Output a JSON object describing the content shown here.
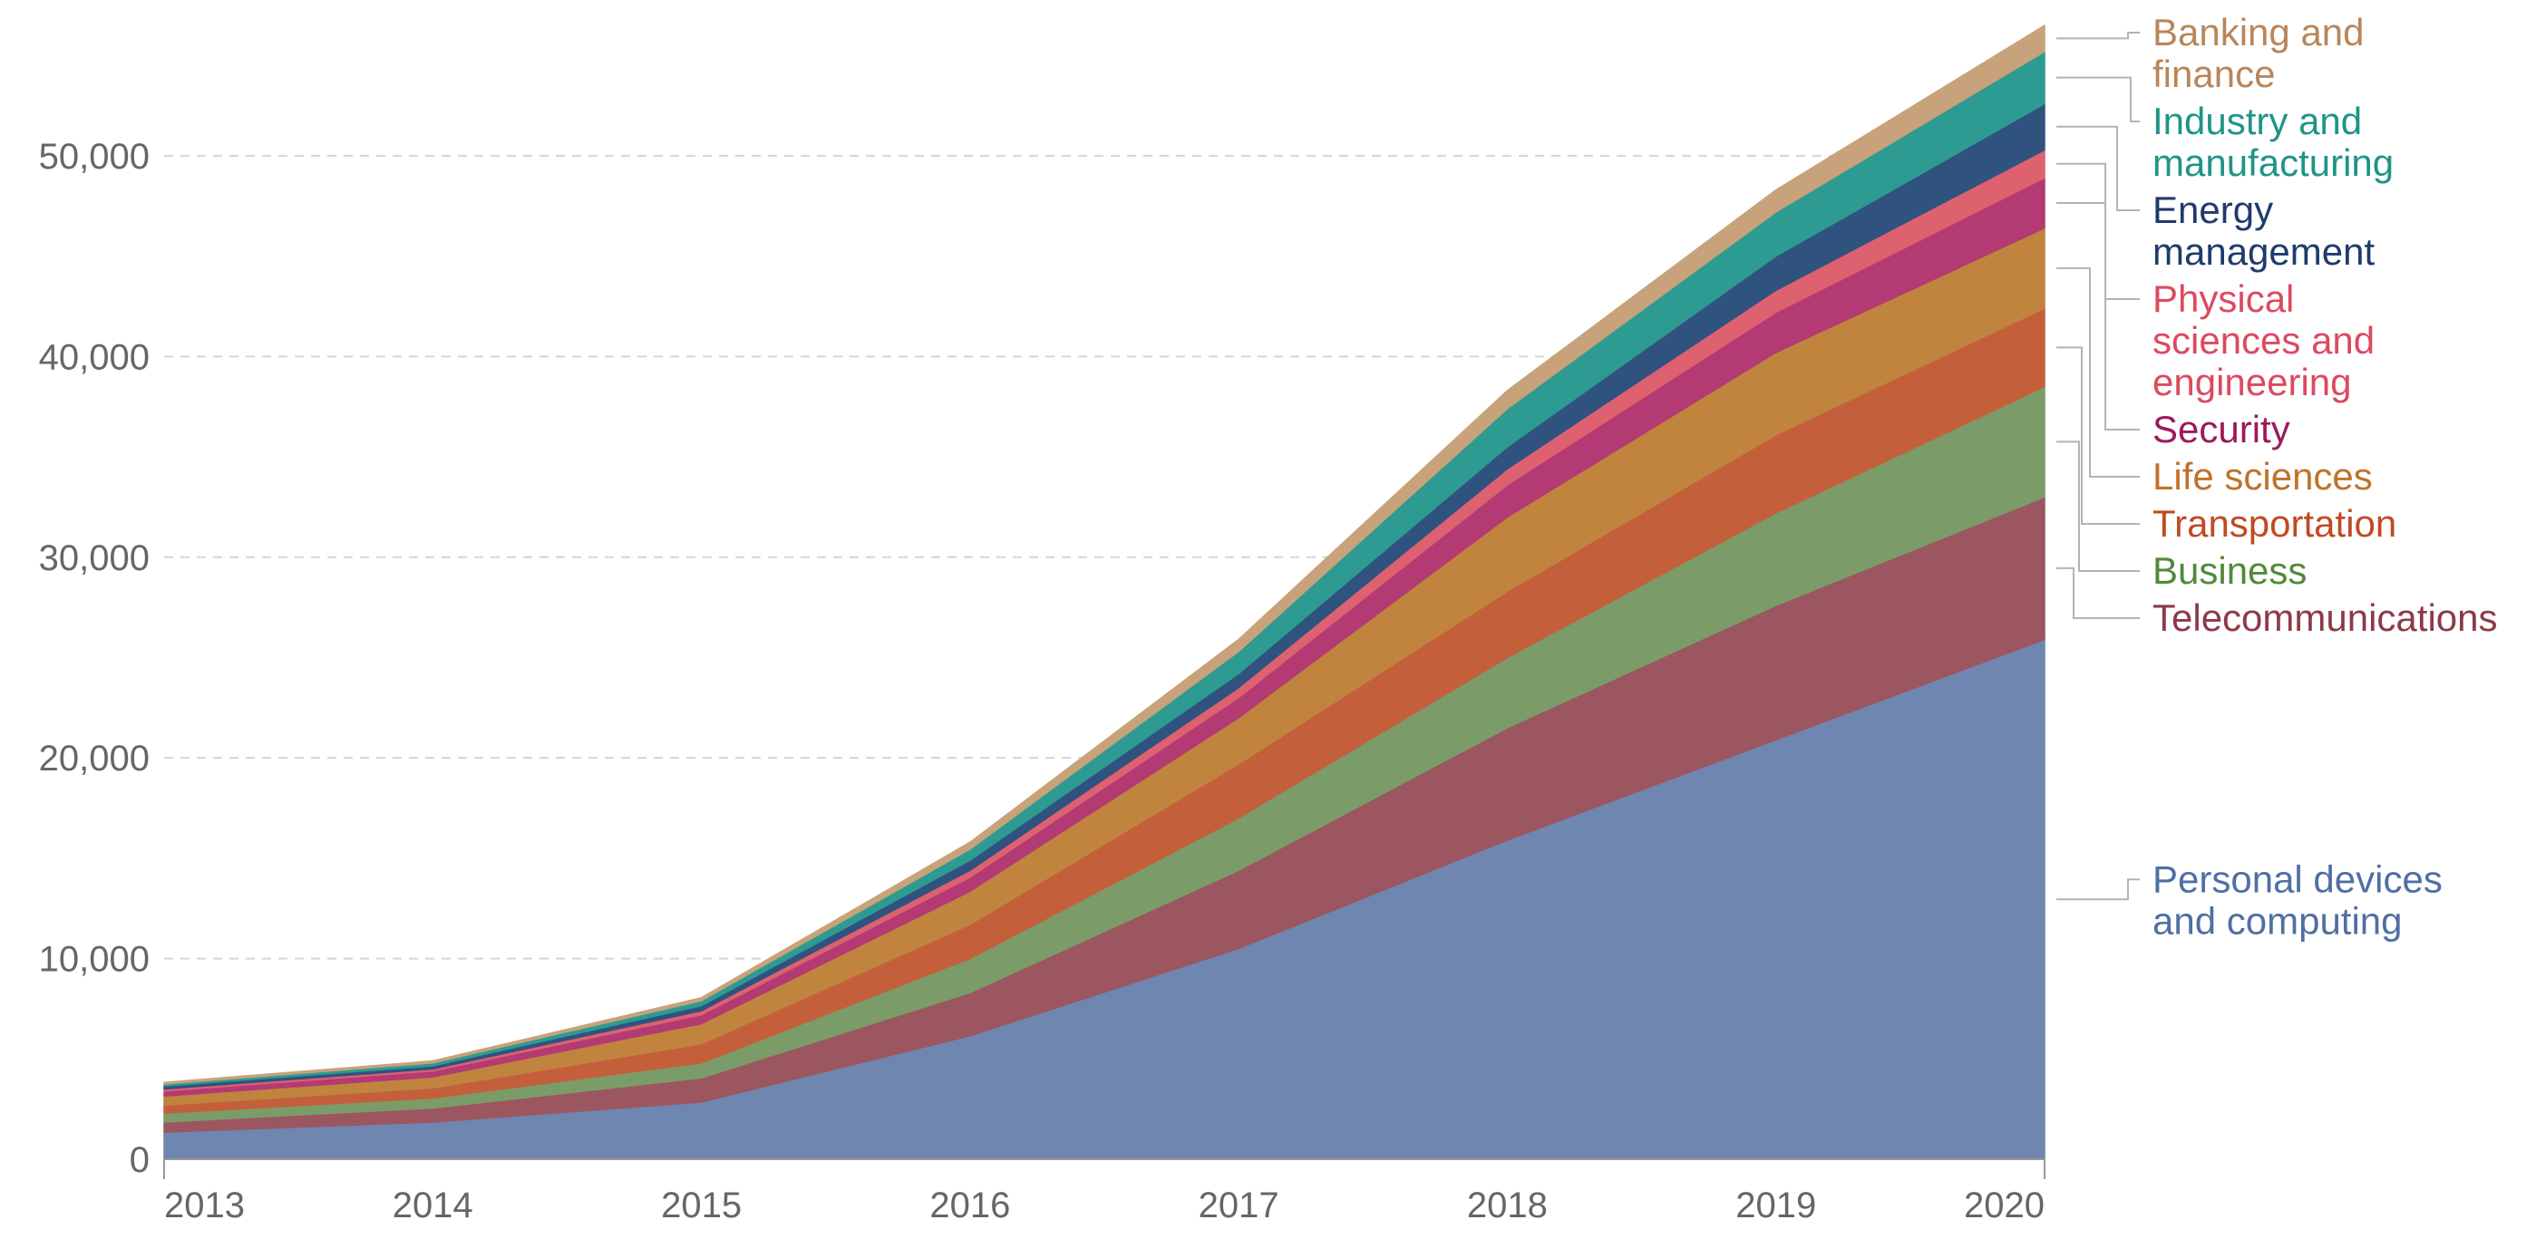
{
  "chart_data": {
    "type": "area",
    "stacked": true,
    "title": "",
    "xlabel": "",
    "ylabel": "",
    "x": [
      2013,
      2014,
      2015,
      2016,
      2017,
      2018,
      2019,
      2020
    ],
    "x_tick_labels": [
      "2013",
      "2014",
      "2015",
      "2016",
      "2017",
      "2018",
      "2019",
      "2020"
    ],
    "ylim": [
      0,
      56500
    ],
    "y_ticks": [
      0,
      10000,
      20000,
      30000,
      40000,
      50000
    ],
    "y_tick_labels": [
      "0",
      "10,000",
      "20,000",
      "30,000",
      "40,000",
      "50,000"
    ],
    "grid": true,
    "legend": "right, labels aligned to series ends",
    "series": [
      {
        "name": "Personal devices and computing",
        "label_lines": [
          "Personal devices",
          "and computing"
        ],
        "color": "#6f86b0",
        "text_color": "#4f6fa5",
        "values": [
          1350,
          1850,
          2850,
          6150,
          10500,
          15900,
          20900,
          25900
        ]
      },
      {
        "name": "Telecommunications",
        "label_lines": [
          "Telecommunications"
        ],
        "color": "#9b5660",
        "text_color": "#8c3a48",
        "values": [
          500,
          700,
          1200,
          2150,
          3900,
          5600,
          6700,
          7100
        ]
      },
      {
        "name": "Business",
        "label_lines": [
          "Business"
        ],
        "color": "#7b9c68",
        "text_color": "#4f8a3a",
        "values": [
          450,
          500,
          750,
          1700,
          2600,
          3500,
          4600,
          5500
        ]
      },
      {
        "name": "Transportation",
        "label_lines": [
          "Transportation"
        ],
        "color": "#c45f3b",
        "text_color": "#c04a23",
        "values": [
          400,
          500,
          950,
          1700,
          2700,
          3300,
          3900,
          3900
        ]
      },
      {
        "name": "Life sciences",
        "label_lines": [
          "Life sciences"
        ],
        "color": "#c0843f",
        "text_color": "#c0722a",
        "values": [
          450,
          550,
          1000,
          1650,
          2300,
          3700,
          4100,
          4000
        ]
      },
      {
        "name": "Security",
        "label_lines": [
          "Security"
        ],
        "color": "#b33a72",
        "text_color": "#9b1a5c",
        "values": [
          250,
          300,
          450,
          700,
          1000,
          1600,
          2000,
          2500
        ]
      },
      {
        "name": "Physical sciences and engineering",
        "label_lines": [
          "Physical",
          "sciences and",
          "engineering"
        ],
        "color": "#de6170",
        "text_color": "#dc4a60",
        "values": [
          100,
          100,
          200,
          350,
          500,
          800,
          1100,
          1400
        ]
      },
      {
        "name": "Energy management",
        "label_lines": [
          "Energy",
          "management"
        ],
        "color": "#30527f",
        "text_color": "#1f3a6e",
        "values": [
          150,
          150,
          250,
          500,
          700,
          1100,
          1700,
          2300
        ]
      },
      {
        "name": "Industry and manufacturing",
        "label_lines": [
          "Industry and",
          "manufacturing"
        ],
        "color": "#2d9b92",
        "text_color": "#1f9488",
        "values": [
          100,
          150,
          250,
          550,
          1100,
          1900,
          2200,
          2600
        ]
      },
      {
        "name": "Banking and finance",
        "label_lines": [
          "Banking and",
          "finance"
        ],
        "color": "#c8a27a",
        "text_color": "#b8865a",
        "values": [
          80,
          100,
          150,
          350,
          600,
          900,
          1100,
          1300
        ]
      }
    ]
  }
}
